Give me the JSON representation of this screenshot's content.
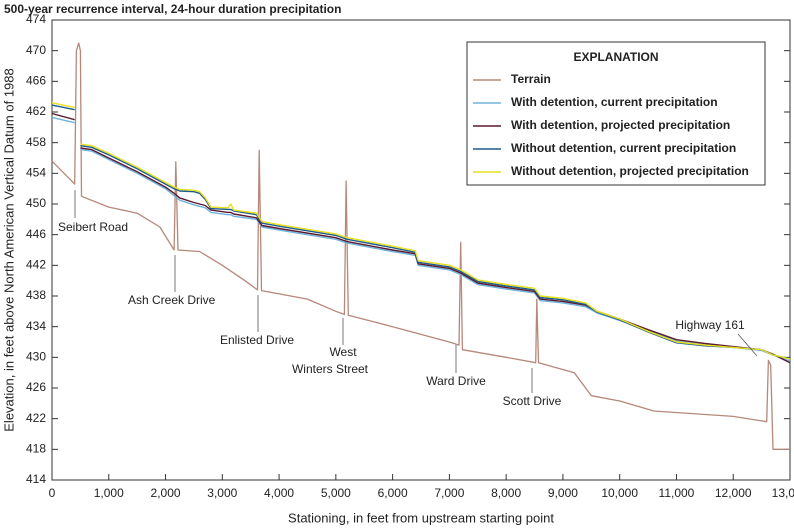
{
  "chart_data": {
    "type": "line",
    "title": "500-year recurrence interval, 24-hour duration precipitation",
    "x_label": "Stationing, in feet from upstream starting point",
    "y_label": "Elevation, in feet above North American Vertical Datum of 1988",
    "legend_title": "EXPLANATION",
    "legend": "upper right",
    "xlim": [
      0,
      13000
    ],
    "ylim": [
      414,
      474
    ],
    "xticks": [
      0,
      {
        "value": 1000,
        "label": "1,000"
      },
      {
        "value": 2000,
        "label": "2,000"
      },
      {
        "value": 3000,
        "label": "3,000"
      },
      {
        "value": 4000,
        "label": "4,000"
      },
      {
        "value": 5000,
        "label": "5,000"
      },
      {
        "value": 6000,
        "label": "6,000"
      },
      {
        "value": 7000,
        "label": "7,000"
      },
      {
        "value": 8000,
        "label": "8,000"
      },
      {
        "value": 9000,
        "label": "9,000"
      },
      {
        "value": 10000,
        "label": "10,000"
      },
      {
        "value": 11000,
        "label": "11,000"
      },
      {
        "value": 12000,
        "label": "12,000"
      },
      {
        "value": 13000,
        "label": "13,000"
      }
    ],
    "yticks": [
      414,
      418,
      422,
      426,
      430,
      434,
      438,
      442,
      446,
      450,
      454,
      458,
      462,
      466,
      470,
      474
    ],
    "x": [
      0,
      400,
      450,
      500,
      700,
      1000,
      1500,
      2000,
      2150,
      2250,
      2500,
      2600,
      2700,
      2800,
      3100,
      3150,
      3200,
      3600,
      3700,
      4000,
      5000,
      5200,
      6000,
      6400,
      6450,
      7000,
      7200,
      7500,
      8000,
      8500,
      8600,
      9000,
      9400,
      9600,
      10000,
      10500,
      11000,
      11500,
      12000,
      12500,
      12700,
      13000
    ],
    "series": [
      {
        "name": "Terrain",
        "color": "#b5887a",
        "x": [
          0,
          400,
          430,
          470,
          500,
          520,
          1000,
          1500,
          1900,
          2150,
          2180,
          2220,
          2600,
          3000,
          3400,
          3620,
          3650,
          3690,
          4500,
          5000,
          5150,
          5180,
          5220,
          6000,
          7000,
          7170,
          7200,
          7230,
          8000,
          8520,
          8540,
          8570,
          9200,
          9500,
          10000,
          10600,
          12000,
          12590,
          12620,
          12660,
          12700,
          13000
        ],
        "values": [
          455.6,
          452.6,
          470,
          471,
          470,
          451,
          449.6,
          448.8,
          447,
          444,
          455.5,
          444,
          443.8,
          442,
          440,
          438.8,
          457,
          438.7,
          437.6,
          436,
          435.6,
          453,
          435.5,
          434,
          432,
          431.6,
          445,
          431,
          430,
          429.3,
          437.6,
          429.3,
          428,
          425,
          424.3,
          423,
          422.3,
          421.6,
          429.6,
          429,
          418,
          418
        ]
      },
      {
        "name": "With detention, current precipitation",
        "color": "#6fb3dc",
        "values": [
          461.3,
          460.6,
          null,
          457.1,
          456.9,
          455.8,
          454,
          452,
          451.1,
          450.5,
          449.9,
          449.7,
          449.5,
          448.9,
          448.6,
          448.6,
          448.4,
          448,
          447,
          446.6,
          445.4,
          444.9,
          443.8,
          443.3,
          442,
          441.4,
          440.8,
          439.5,
          438.9,
          438.4,
          437.4,
          437.1,
          436.6,
          435.8,
          434.8,
          433.5,
          432.1,
          431.6,
          431.3,
          430.9,
          430.3,
          429.5
        ]
      },
      {
        "name": "With detention, projected precipitation",
        "color": "#5c1a2e",
        "values": [
          461.8,
          461,
          null,
          457.3,
          457.1,
          456,
          454.2,
          452.2,
          451.4,
          450.8,
          450.2,
          450,
          449.8,
          449.2,
          448.9,
          448.9,
          448.7,
          448.2,
          447.2,
          446.8,
          445.6,
          445.1,
          444,
          443.5,
          442.2,
          441.6,
          441,
          439.7,
          439.1,
          438.6,
          437.6,
          437.3,
          436.8,
          436,
          435,
          433.6,
          432.3,
          431.8,
          431.4,
          431,
          430.4,
          429.3
        ]
      },
      {
        "name": "Without detention, current precipitation",
        "color": "#1d5c8c",
        "values": [
          462.9,
          462.3,
          null,
          457.6,
          457.4,
          456.4,
          454.6,
          452.6,
          452,
          451.7,
          451.6,
          451.4,
          450.6,
          449.4,
          449.3,
          449.3,
          449.1,
          448.6,
          447.5,
          447.1,
          445.9,
          445.4,
          444.3,
          443.7,
          442.4,
          441.8,
          441.2,
          439.9,
          439.3,
          438.8,
          437.8,
          437.5,
          436.9,
          435.9,
          434.9,
          433.3,
          431.9,
          431.5,
          431.3,
          431,
          430.3,
          429.8
        ]
      },
      {
        "name": "Without detention, projected precipitation",
        "color": "#e6e01e",
        "values": [
          463.2,
          462.6,
          null,
          457.8,
          457.6,
          456.6,
          454.8,
          452.8,
          452.2,
          451.9,
          451.8,
          451.6,
          450.8,
          449.6,
          449.5,
          450,
          449.2,
          448.8,
          447.7,
          447.3,
          446.1,
          445.6,
          444.5,
          443.9,
          442.6,
          442,
          441.4,
          440.1,
          439.5,
          439,
          438,
          437.7,
          437.1,
          436,
          435,
          433.4,
          432,
          431.6,
          431.3,
          431,
          430.3,
          429.8
        ]
      }
    ],
    "annotations": [
      {
        "lines": [
          "Seibert Road"
        ]
      },
      {
        "lines": [
          "Ash Creek Drive"
        ]
      },
      {
        "lines": [
          "Enlisted Drive"
        ]
      },
      {
        "lines": [
          "West",
          "Winters Street"
        ]
      },
      {
        "lines": [
          "Ward Drive"
        ]
      },
      {
        "lines": [
          "Scott Drive"
        ]
      },
      {
        "lines": [
          "Highway 161"
        ]
      }
    ]
  }
}
